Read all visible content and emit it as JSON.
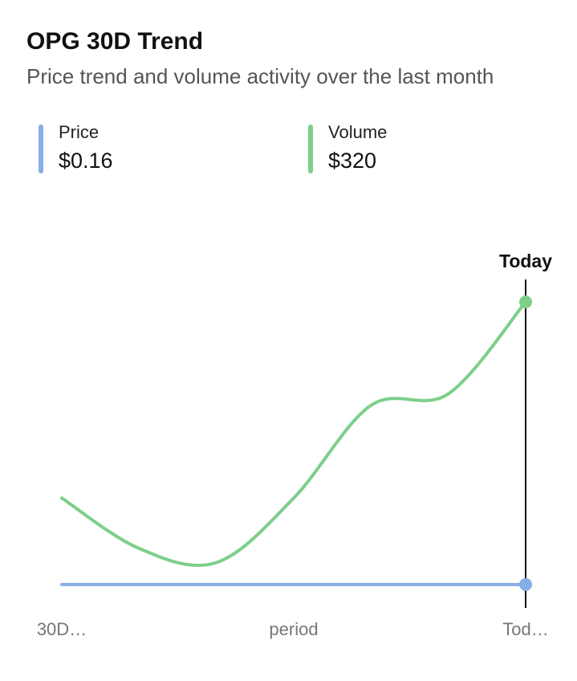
{
  "chart_data": {
    "type": "line",
    "title": "OPG 30D Trend",
    "subtitle": "Price trend and volume activity over the last month",
    "categories": [
      "30D…",
      null,
      null,
      "period",
      null,
      null,
      "Tod…"
    ],
    "series": [
      {
        "name": "Price",
        "color": "#86aee8",
        "values": [
          0.16,
          0.16,
          0.16,
          0.16,
          0.16,
          0.16,
          0.16
        ],
        "value_labels": [
          null,
          null,
          null,
          null,
          null,
          null,
          "$0.16"
        ]
      },
      {
        "name": "Volume",
        "color": "#7dcf8a",
        "values": [
          98,
          41,
          25,
          98,
          203,
          216,
          320
        ],
        "value_labels": [
          null,
          null,
          null,
          null,
          null,
          null,
          "$320"
        ]
      }
    ],
    "ylim": [
      0,
      320
    ],
    "annotation": "Today"
  }
}
